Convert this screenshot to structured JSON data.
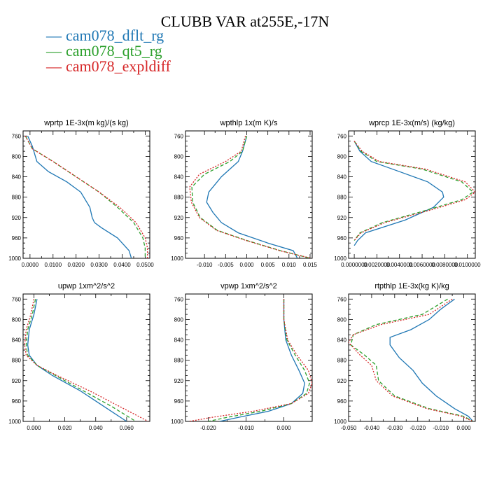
{
  "figure": {
    "title": "CLUBB VAR at255E,-17N",
    "legend": [
      {
        "label": "cam078_dflt_rg",
        "color": "#1f77b4",
        "dash": "solid"
      },
      {
        "label": "cam078_qt5_rg",
        "color": "#2ca02c",
        "dash": "dashed"
      },
      {
        "label": "cam078_expldiff",
        "color": "#d62728",
        "dash": "dotted"
      }
    ]
  },
  "chart_data": [
    {
      "type": "line",
      "title": "wprtp  1E-3x(m kg)/(s kg)",
      "xlim": [
        -0.003,
        0.052
      ],
      "ylim": [
        1000,
        750
      ],
      "xticks": [
        0.0,
        0.01,
        0.02,
        0.03,
        0.04,
        0.05
      ],
      "xtick_labels": [
        "0.0000",
        "0.0100",
        "0.0200",
        "0.0300",
        "0.0400",
        "0.0500"
      ],
      "yticks": [
        760,
        800,
        840,
        880,
        920,
        960,
        1000
      ],
      "ytick_labels": [
        "760",
        "800",
        "840",
        "880",
        "920",
        "960",
        "1000"
      ],
      "series": [
        {
          "name": "cam078_dflt_rg",
          "x": [
            -0.001,
            0.001,
            0.003,
            0.008,
            0.016,
            0.022,
            0.026,
            0.027,
            0.028,
            0.031,
            0.038,
            0.043,
            0.044
          ],
          "y": [
            760,
            780,
            810,
            830,
            850,
            870,
            900,
            920,
            930,
            940,
            960,
            985,
            1000
          ]
        },
        {
          "name": "cam078_qt5_rg",
          "x": [
            -0.002,
            0.001,
            0.01,
            0.02,
            0.03,
            0.038,
            0.045,
            0.049,
            0.05,
            0.05
          ],
          "y": [
            760,
            785,
            810,
            840,
            870,
            900,
            930,
            960,
            980,
            1000
          ]
        },
        {
          "name": "cam078_expldiff",
          "x": [
            -0.002,
            0.001,
            0.01,
            0.02,
            0.03,
            0.039,
            0.046,
            0.05,
            0.051,
            0.051
          ],
          "y": [
            760,
            785,
            810,
            840,
            870,
            900,
            930,
            960,
            980,
            1000
          ]
        }
      ]
    },
    {
      "type": "line",
      "title": "wpthlp  1x(m K)/s",
      "xlim": [
        -0.0145,
        0.0155
      ],
      "ylim": [
        1000,
        750
      ],
      "xticks": [
        -0.01,
        -0.005,
        0.0,
        0.005,
        0.01,
        0.015
      ],
      "xtick_labels": [
        "-0.010",
        "-0.005",
        "0.000",
        "0.005",
        "0.010",
        "0.015"
      ],
      "yticks": [
        760,
        800,
        840,
        880,
        920,
        960,
        1000
      ],
      "ytick_labels": [
        "760",
        "800",
        "840",
        "880",
        "920",
        "960",
        "1000"
      ],
      "series": [
        {
          "name": "cam078_dflt_rg",
          "x": [
            0.0,
            -0.001,
            -0.002,
            -0.006,
            -0.009,
            -0.0095,
            -0.008,
            -0.006,
            -0.002,
            0.005,
            0.011,
            0.012
          ],
          "y": [
            760,
            790,
            810,
            840,
            870,
            890,
            910,
            930,
            950,
            970,
            985,
            1000
          ]
        },
        {
          "name": "cam078_qt5_rg",
          "x": [
            0.0,
            -0.001,
            -0.004,
            -0.01,
            -0.013,
            -0.0128,
            -0.011,
            -0.007,
            0.0,
            0.008,
            0.015
          ],
          "y": [
            760,
            790,
            810,
            835,
            860,
            890,
            920,
            945,
            965,
            985,
            1000
          ]
        },
        {
          "name": "cam078_expldiff",
          "x": [
            -0.0003,
            -0.0013,
            -0.005,
            -0.0112,
            -0.0135,
            -0.0131,
            -0.0112,
            -0.0072,
            -0.0002,
            0.0078,
            0.0153
          ],
          "y": [
            760,
            790,
            810,
            835,
            860,
            890,
            920,
            945,
            965,
            985,
            1000
          ]
        }
      ]
    },
    {
      "type": "line",
      "title": "wprcp  1E-3x(m/s) (kg/kg)",
      "xlim": [
        -0.0005,
        0.0107
      ],
      "ylim": [
        1000,
        750
      ],
      "xticks": [
        0.0,
        0.002,
        0.004,
        0.006,
        0.008,
        0.01
      ],
      "xtick_labels": [
        "0.0000000",
        "0.0020000",
        "0.0040000",
        "0.0060000",
        "0.0080000",
        "0.0100000"
      ],
      "yticks": [
        760,
        800,
        840,
        880,
        920,
        960,
        1000
      ],
      "ytick_labels": [
        "760",
        "800",
        "840",
        "880",
        "920",
        "960",
        "1000"
      ],
      "series": [
        {
          "name": "cam078_dflt_rg",
          "x": [
            0.0,
            0.0005,
            0.0015,
            0.004,
            0.0065,
            0.0078,
            0.0079,
            0.007,
            0.0045,
            0.001,
            0.0003,
            0.0
          ],
          "y": [
            770,
            790,
            810,
            830,
            850,
            870,
            880,
            900,
            925,
            950,
            965,
            975
          ]
        },
        {
          "name": "cam078_qt5_rg",
          "x": [
            0.0,
            0.0006,
            0.002,
            0.006,
            0.0095,
            0.0105,
            0.0095,
            0.0065,
            0.0025,
            0.0005,
            0.0
          ],
          "y": [
            770,
            790,
            810,
            825,
            850,
            870,
            885,
            905,
            930,
            950,
            965
          ]
        },
        {
          "name": "cam078_expldiff",
          "x": [
            0.0,
            0.0007,
            0.0022,
            0.0063,
            0.0098,
            0.0107,
            0.0098,
            0.0068,
            0.0027,
            0.0006,
            0.0
          ],
          "y": [
            770,
            790,
            810,
            825,
            850,
            870,
            885,
            905,
            930,
            950,
            965
          ]
        }
      ]
    },
    {
      "type": "line",
      "title": "upwp  1xm^2/s^2",
      "xlim": [
        -0.007,
        0.075
      ],
      "ylim": [
        1000,
        750
      ],
      "xticks": [
        0.0,
        0.02,
        0.04,
        0.06
      ],
      "xtick_labels": [
        "0.000",
        "0.020",
        "0.040",
        "0.060"
      ],
      "yticks": [
        760,
        800,
        840,
        880,
        920,
        960,
        1000
      ],
      "ytick_labels": [
        "760",
        "800",
        "840",
        "880",
        "920",
        "960",
        "1000"
      ],
      "series": [
        {
          "name": "cam078_dflt_rg",
          "x": [
            0.002,
            0.0,
            -0.003,
            -0.004,
            -0.003,
            0.002,
            0.012,
            0.03,
            0.045,
            0.06
          ],
          "y": [
            760,
            790,
            820,
            850,
            870,
            890,
            910,
            940,
            970,
            1000
          ]
        },
        {
          "name": "cam078_qt5_rg",
          "x": [
            0.001,
            -0.001,
            -0.004,
            -0.005,
            -0.004,
            0.002,
            0.014,
            0.032,
            0.05,
            0.066
          ],
          "y": [
            760,
            790,
            820,
            850,
            870,
            890,
            910,
            940,
            970,
            1000
          ]
        },
        {
          "name": "cam078_expldiff",
          "x": [
            0.0,
            -0.002,
            -0.005,
            -0.006,
            -0.005,
            0.002,
            0.015,
            0.036,
            0.055,
            0.074
          ],
          "y": [
            760,
            790,
            820,
            850,
            870,
            890,
            910,
            940,
            970,
            1000
          ]
        }
      ]
    },
    {
      "type": "line",
      "title": "vpwp  1xm^2/s^2",
      "xlim": [
        -0.026,
        0.0075
      ],
      "ylim": [
        1000,
        750
      ],
      "xticks": [
        -0.02,
        -0.01,
        0.0
      ],
      "xtick_labels": [
        "-0.020",
        "-0.010",
        "0.000"
      ],
      "yticks": [
        760,
        800,
        840,
        880,
        920,
        960,
        1000
      ],
      "ytick_labels": [
        "760",
        "800",
        "840",
        "880",
        "920",
        "960",
        "1000"
      ],
      "series": [
        {
          "name": "cam078_dflt_rg",
          "x": [
            0.0,
            0.0,
            0.0005,
            0.002,
            0.004,
            0.0055,
            0.005,
            0.002,
            -0.004,
            -0.012,
            -0.017
          ],
          "y": [
            760,
            800,
            840,
            870,
            900,
            925,
            945,
            965,
            980,
            992,
            1000
          ]
        },
        {
          "name": "cam078_qt5_rg",
          "x": [
            0.0,
            0.0,
            0.0008,
            0.003,
            0.0055,
            0.0068,
            0.006,
            0.002,
            -0.006,
            -0.015,
            -0.02
          ],
          "y": [
            760,
            800,
            840,
            870,
            900,
            925,
            945,
            965,
            980,
            992,
            1000
          ]
        },
        {
          "name": "cam078_expldiff",
          "x": [
            0.0,
            0.0,
            0.001,
            0.0035,
            0.0065,
            0.0075,
            0.0065,
            0.002,
            -0.008,
            -0.019,
            -0.025
          ],
          "y": [
            760,
            800,
            840,
            870,
            900,
            925,
            945,
            965,
            980,
            992,
            1000
          ]
        }
      ]
    },
    {
      "type": "line",
      "title": "rtpthlp  1E-3x(kg K)/kg",
      "xlim": [
        -0.05,
        0.005
      ],
      "ylim": [
        1000,
        750
      ],
      "xticks": [
        -0.05,
        -0.04,
        -0.03,
        -0.02,
        -0.01,
        0.0
      ],
      "xtick_labels": [
        "-0.050",
        "-0.040",
        "-0.030",
        "-0.020",
        "-0.010",
        "0.000"
      ],
      "yticks": [
        760,
        800,
        840,
        880,
        920,
        960,
        1000
      ],
      "ytick_labels": [
        "760",
        "800",
        "840",
        "880",
        "920",
        "960",
        "1000"
      ],
      "series": [
        {
          "name": "cam078_dflt_rg",
          "x": [
            -0.004,
            -0.01,
            -0.015,
            -0.023,
            -0.032,
            -0.032,
            -0.028,
            -0.022,
            -0.018,
            -0.012,
            -0.004,
            0.002,
            0.004
          ],
          "y": [
            760,
            780,
            800,
            820,
            835,
            850,
            875,
            900,
            925,
            950,
            975,
            990,
            1000
          ]
        },
        {
          "name": "cam078_qt5_rg",
          "x": [
            -0.007,
            -0.018,
            -0.038,
            -0.048,
            -0.049,
            -0.043,
            -0.038,
            -0.037,
            -0.03,
            -0.015,
            0.0,
            0.004
          ],
          "y": [
            760,
            790,
            810,
            830,
            850,
            870,
            890,
            920,
            950,
            975,
            990,
            1000
          ]
        },
        {
          "name": "cam078_expldiff",
          "x": [
            -0.005,
            -0.015,
            -0.036,
            -0.048,
            -0.05,
            -0.045,
            -0.04,
            -0.038,
            -0.031,
            -0.016,
            -0.001,
            0.004
          ],
          "y": [
            760,
            790,
            810,
            830,
            845,
            870,
            890,
            920,
            950,
            975,
            990,
            1000
          ]
        }
      ]
    }
  ]
}
